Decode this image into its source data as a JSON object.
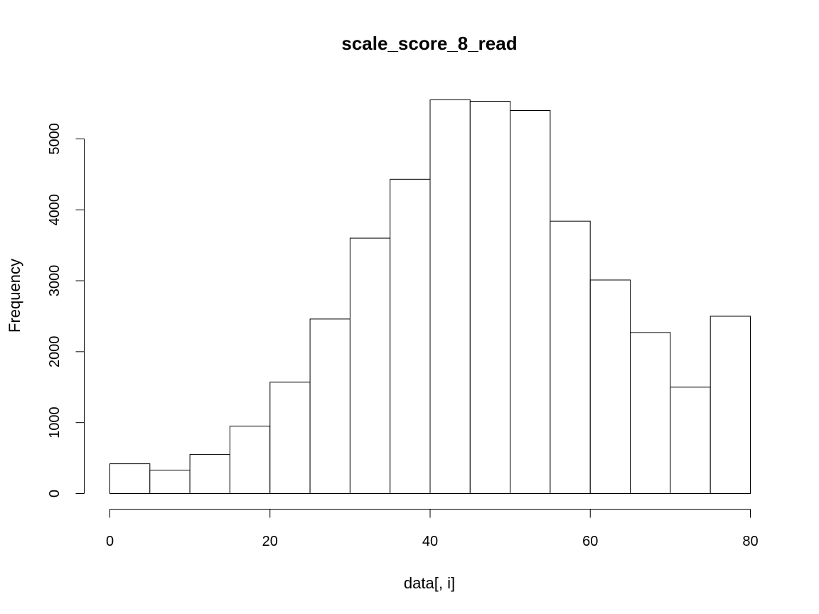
{
  "chart_data": {
    "type": "bar",
    "title": "scale_score_8_read",
    "xlabel": "data[, i]",
    "ylabel": "Frequency",
    "bin_edges": [
      0,
      5,
      10,
      15,
      20,
      25,
      30,
      35,
      40,
      45,
      50,
      55,
      60,
      65,
      70,
      75,
      80
    ],
    "values": [
      420,
      330,
      550,
      950,
      1570,
      2460,
      3600,
      4430,
      5550,
      5530,
      5400,
      3840,
      3010,
      2270,
      1500,
      2500
    ],
    "xlim": [
      0,
      80
    ],
    "ylim": [
      0,
      5550
    ],
    "x_ticks": [
      0,
      20,
      40,
      60,
      80
    ],
    "y_ticks": [
      0,
      1000,
      2000,
      3000,
      4000,
      5000
    ],
    "grid": false,
    "legend": "none"
  }
}
